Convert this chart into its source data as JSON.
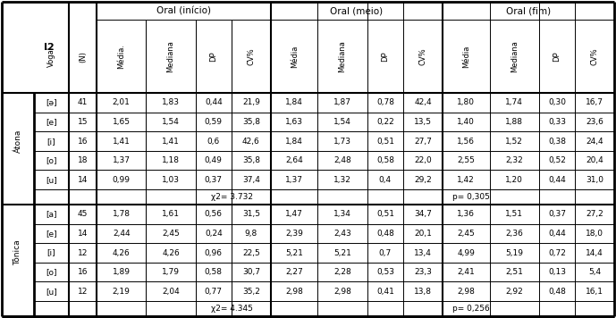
{
  "atona_rows": [
    [
      "[ə]",
      "41",
      "2,01",
      "1,83",
      "0,44",
      "21,9",
      "1,84",
      "1,87",
      "0,78",
      "42,4",
      "1,80",
      "1,74",
      "0,30",
      "16,7"
    ],
    [
      "[e]",
      "15",
      "1,65",
      "1,54",
      "0,59",
      "35,8",
      "1,63",
      "1,54",
      "0,22",
      "13,5",
      "1,40",
      "1,88",
      "0,33",
      "23,6"
    ],
    [
      "[i]",
      "16",
      "1,41",
      "1,41",
      "0,6",
      "42,6",
      "1,84",
      "1,73",
      "0,51",
      "27,7",
      "1,56",
      "1,52",
      "0,38",
      "24,4"
    ],
    [
      "[o]",
      "18",
      "1,37",
      "1,18",
      "0,49",
      "35,8",
      "2,64",
      "2,48",
      "0,58",
      "22,0",
      "2,55",
      "2,32",
      "0,52",
      "20,4"
    ],
    [
      "[u]",
      "14",
      "0,99",
      "1,03",
      "0,37",
      "37,4",
      "1,37",
      "1,32",
      "0,4",
      "29,2",
      "1,42",
      "1,20",
      "0,44",
      "31,0"
    ]
  ],
  "atona_stat_chi": "χ2= 3.732",
  "atona_stat_p": "p= 0,305",
  "tonica_rows": [
    [
      "[a]",
      "45",
      "1,78",
      "1,61",
      "0,56",
      "31,5",
      "1,47",
      "1,34",
      "0,51",
      "34,7",
      "1,36",
      "1,51",
      "0,37",
      "27,2"
    ],
    [
      "[e]",
      "14",
      "2,44",
      "2,45",
      "0,24",
      "9,8",
      "2,39",
      "2,43",
      "0,48",
      "20,1",
      "2,45",
      "2,36",
      "0,44",
      "18,0"
    ],
    [
      "[i]",
      "12",
      "4,26",
      "4,26",
      "0,96",
      "22,5",
      "5,21",
      "5,21",
      "0,7",
      "13,4",
      "4,99",
      "5,19",
      "0,72",
      "14,4"
    ],
    [
      "[o]",
      "16",
      "1,89",
      "1,79",
      "0,58",
      "30,7",
      "2,27",
      "2,28",
      "0,53",
      "23,3",
      "2,41",
      "2,51",
      "0,13",
      "5,4"
    ],
    [
      "[u]",
      "12",
      "2,19",
      "2,04",
      "0,77",
      "35,2",
      "2,98",
      "2,98",
      "0,41",
      "13,8",
      "2,98",
      "2,92",
      "0,48",
      "16,1"
    ]
  ],
  "tonica_stat_chi": "χ2= 4.345",
  "tonica_stat_p": "p= 0,256",
  "atona_label": "Átona",
  "tonica_label": "Tônica",
  "header_row1": [
    "I2",
    "Oral (início)",
    "Oral (meio)",
    "Oral (fim)"
  ],
  "col_headers": [
    "Vogal",
    "(N)",
    "Média.",
    "Mediana",
    "DP",
    "CV%",
    "Média",
    "Mediana",
    "DP",
    "CV%",
    "Média",
    "Mediana",
    "DP",
    "CV%"
  ],
  "bg_color": "#ffffff",
  "text_color": "#000000"
}
